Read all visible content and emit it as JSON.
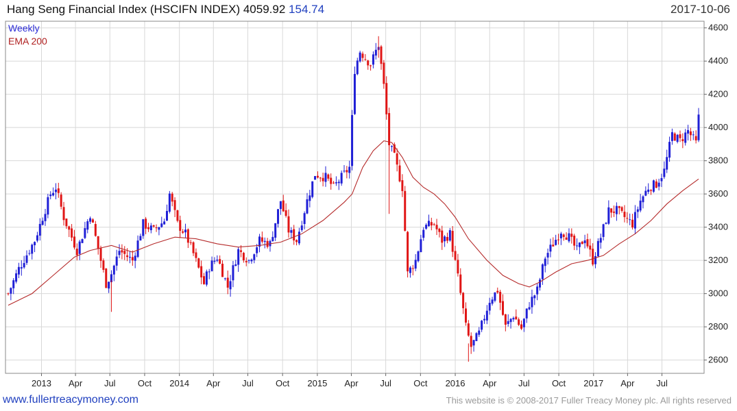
{
  "header": {
    "title": "Hang Seng Financial Index (HSCIFN INDEX) 4059.92",
    "change": "154.74",
    "date": "2017-10-06"
  },
  "footer": {
    "site": "www.fullertreacymoney.com",
    "copyright": "This website is © 2008-2017 Fuller Treacy Money plc. All rights reserved"
  },
  "colors": {
    "up": "#1f1fd6",
    "down": "#e01515",
    "ema": "#b52a2a",
    "grid": "#d8d8d8"
  },
  "chart_data": {
    "type": "candlestick",
    "frequency": "Weekly",
    "ylim": [
      2520,
      4640
    ],
    "yticks": [
      2600,
      2800,
      3000,
      3200,
      3400,
      3600,
      3800,
      4000,
      4200,
      4400,
      4600
    ],
    "grid": true,
    "legend": {
      "position": "top-left",
      "entries": [
        "Weekly",
        "EMA 200"
      ]
    },
    "x_start": "2012-10-05",
    "x_end": "2017-10-06",
    "xticks": [
      {
        "label": "2013",
        "date": "2013-01-01"
      },
      {
        "label": "Apr",
        "date": "2013-04-01"
      },
      {
        "label": "Jul",
        "date": "2013-07-01"
      },
      {
        "label": "Oct",
        "date": "2013-10-01"
      },
      {
        "label": "2014",
        "date": "2014-01-01"
      },
      {
        "label": "Apr",
        "date": "2014-04-01"
      },
      {
        "label": "Jul",
        "date": "2014-07-01"
      },
      {
        "label": "Oct",
        "date": "2014-10-01"
      },
      {
        "label": "2015",
        "date": "2015-01-01"
      },
      {
        "label": "Apr",
        "date": "2015-04-01"
      },
      {
        "label": "Jul",
        "date": "2015-07-01"
      },
      {
        "label": "Oct",
        "date": "2015-10-01"
      },
      {
        "label": "2016",
        "date": "2016-01-01"
      },
      {
        "label": "Apr",
        "date": "2016-04-01"
      },
      {
        "label": "Jul",
        "date": "2016-07-01"
      },
      {
        "label": "Oct",
        "date": "2016-10-01"
      },
      {
        "label": "2017",
        "date": "2017-01-01"
      },
      {
        "label": "Apr",
        "date": "2017-04-01"
      },
      {
        "label": "Jul",
        "date": "2017-07-01"
      }
    ],
    "price_path": [
      [
        "2012-10-05",
        3000
      ],
      [
        "2012-11-02",
        3150
      ],
      [
        "2012-12-14",
        3320
      ],
      [
        "2013-01-25",
        3600
      ],
      [
        "2013-02-08",
        3640
      ],
      [
        "2013-03-01",
        3460
      ],
      [
        "2013-04-05",
        3260
      ],
      [
        "2013-05-10",
        3480
      ],
      [
        "2013-06-21",
        3060
      ],
      [
        "2013-07-05",
        3120
      ],
      [
        "2013-07-26",
        3260
      ],
      [
        "2013-08-30",
        3200
      ],
      [
        "2013-09-27",
        3420
      ],
      [
        "2013-10-25",
        3380
      ],
      [
        "2013-11-22",
        3440
      ],
      [
        "2013-12-06",
        3600
      ],
      [
        "2013-12-27",
        3420
      ],
      [
        "2014-01-17",
        3360
      ],
      [
        "2014-02-07",
        3240
      ],
      [
        "2014-03-07",
        3060
      ],
      [
        "2014-03-21",
        3160
      ],
      [
        "2014-04-11",
        3220
      ],
      [
        "2014-05-09",
        3040
      ],
      [
        "2014-06-06",
        3260
      ],
      [
        "2014-07-04",
        3200
      ],
      [
        "2014-08-01",
        3320
      ],
      [
        "2014-08-29",
        3300
      ],
      [
        "2014-09-26",
        3560
      ],
      [
        "2014-10-17",
        3380
      ],
      [
        "2014-11-07",
        3320
      ],
      [
        "2014-12-05",
        3560
      ],
      [
        "2014-12-26",
        3720
      ],
      [
        "2015-01-23",
        3700
      ],
      [
        "2015-02-13",
        3640
      ],
      [
        "2015-03-06",
        3700
      ],
      [
        "2015-03-27",
        3760
      ],
      [
        "2015-04-10",
        4350
      ],
      [
        "2015-04-24",
        4460
      ],
      [
        "2015-05-22",
        4380
      ],
      [
        "2015-06-12",
        4500
      ],
      [
        "2015-06-26",
        4250
      ],
      [
        "2015-07-10",
        3900
      ],
      [
        "2015-07-24",
        3820
      ],
      [
        "2015-08-14",
        3640
      ],
      [
        "2015-08-28",
        3120
      ],
      [
        "2015-09-18",
        3200
      ],
      [
        "2015-10-09",
        3400
      ],
      [
        "2015-11-06",
        3420
      ],
      [
        "2015-11-27",
        3320
      ],
      [
        "2015-12-18",
        3360
      ],
      [
        "2016-01-08",
        3100
      ],
      [
        "2016-01-29",
        2800
      ],
      [
        "2016-02-12",
        2680
      ],
      [
        "2016-03-04",
        2760
      ],
      [
        "2016-04-01",
        2960
      ],
      [
        "2016-04-22",
        3020
      ],
      [
        "2016-05-13",
        2800
      ],
      [
        "2016-06-03",
        2870
      ],
      [
        "2016-06-24",
        2790
      ],
      [
        "2016-07-15",
        2940
      ],
      [
        "2016-08-05",
        3020
      ],
      [
        "2016-08-26",
        3220
      ],
      [
        "2016-09-16",
        3300
      ],
      [
        "2016-10-07",
        3380
      ],
      [
        "2016-10-28",
        3340
      ],
      [
        "2016-11-18",
        3260
      ],
      [
        "2016-12-09",
        3340
      ],
      [
        "2016-12-30",
        3200
      ],
      [
        "2017-01-20",
        3340
      ],
      [
        "2017-02-10",
        3500
      ],
      [
        "2017-03-03",
        3500
      ],
      [
        "2017-03-24",
        3460
      ],
      [
        "2017-04-14",
        3420
      ],
      [
        "2017-05-05",
        3560
      ],
      [
        "2017-05-26",
        3640
      ],
      [
        "2017-06-16",
        3660
      ],
      [
        "2017-07-07",
        3740
      ],
      [
        "2017-07-28",
        3960
      ],
      [
        "2017-08-18",
        3920
      ],
      [
        "2017-09-08",
        3980
      ],
      [
        "2017-09-29",
        3905
      ],
      [
        "2017-10-06",
        4060
      ]
    ],
    "ema_path": [
      [
        "2012-10-05",
        2930
      ],
      [
        "2012-12-07",
        3000
      ],
      [
        "2013-02-01",
        3110
      ],
      [
        "2013-03-29",
        3220
      ],
      [
        "2013-05-10",
        3260
      ],
      [
        "2013-07-05",
        3290
      ],
      [
        "2013-08-30",
        3250
      ],
      [
        "2013-10-25",
        3300
      ],
      [
        "2013-12-20",
        3340
      ],
      [
        "2014-02-14",
        3330
      ],
      [
        "2014-04-11",
        3300
      ],
      [
        "2014-06-06",
        3280
      ],
      [
        "2014-08-01",
        3290
      ],
      [
        "2014-09-26",
        3310
      ],
      [
        "2014-11-21",
        3360
      ],
      [
        "2015-01-16",
        3440
      ],
      [
        "2015-03-13",
        3550
      ],
      [
        "2015-04-03",
        3600
      ],
      [
        "2015-05-01",
        3760
      ],
      [
        "2015-05-29",
        3860
      ],
      [
        "2015-06-26",
        3920
      ],
      [
        "2015-07-17",
        3910
      ],
      [
        "2015-08-14",
        3820
      ],
      [
        "2015-09-11",
        3700
      ],
      [
        "2015-10-09",
        3640
      ],
      [
        "2015-11-06",
        3600
      ],
      [
        "2015-12-04",
        3540
      ],
      [
        "2016-01-01",
        3460
      ],
      [
        "2016-02-05",
        3330
      ],
      [
        "2016-03-25",
        3200
      ],
      [
        "2016-05-06",
        3110
      ],
      [
        "2016-06-17",
        3060
      ],
      [
        "2016-07-15",
        3040
      ],
      [
        "2016-08-12",
        3070
      ],
      [
        "2016-09-23",
        3130
      ],
      [
        "2016-11-04",
        3180
      ],
      [
        "2016-12-16",
        3200
      ],
      [
        "2017-01-27",
        3230
      ],
      [
        "2017-03-10",
        3300
      ],
      [
        "2017-04-21",
        3360
      ],
      [
        "2017-06-02",
        3440
      ],
      [
        "2017-07-14",
        3540
      ],
      [
        "2017-08-25",
        3620
      ],
      [
        "2017-10-06",
        3690
      ]
    ],
    "extra_wicks": [
      [
        "2015-07-10",
        3480,
        3920
      ],
      [
        "2016-02-05",
        2590,
        2700
      ],
      [
        "2015-06-12",
        4420,
        4550
      ],
      [
        "2013-07-05",
        2890,
        3080
      ]
    ]
  }
}
